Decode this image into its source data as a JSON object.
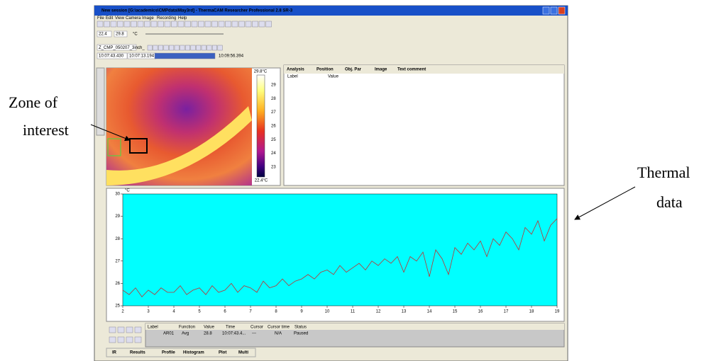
{
  "window": {
    "title": "New session [G:\\academics\\CMPdata\\May3rd] - ThermaCAM Researcher Professional 2.8 SR-3",
    "menu": [
      "File",
      "Edit",
      "View",
      "Camera",
      "Image",
      "Recording",
      "Help"
    ]
  },
  "toolbar": {
    "range_low": "22.4",
    "range_high": "29.8",
    "unit": "°C",
    "file": "Z_CMP_050207_3inch_",
    "time_current": "10:07:43.430",
    "time_start": "10:07:13.194",
    "time_end": "10:09:56.394"
  },
  "ir_image": {
    "scale_max": "29.8°C",
    "scale_min": "22.4°C",
    "scale_ticks": [
      "29",
      "28",
      "27",
      "26",
      "25",
      "24",
      "23"
    ]
  },
  "info_panel": {
    "tabs": [
      "Analysis",
      "Position",
      "Obj. Par",
      "Image",
      "Text comment"
    ],
    "columns": [
      "Label",
      "Value"
    ]
  },
  "plot": {
    "type": "line",
    "y_label": "°C",
    "color": "#c03030",
    "background": "#00ffff",
    "xlim": [
      2,
      19
    ],
    "xticks": [
      2,
      3,
      4,
      5,
      6,
      7,
      8,
      9,
      10,
      11,
      12,
      13,
      14,
      15,
      16,
      17,
      18,
      19
    ],
    "ylim": [
      25,
      30
    ],
    "yticks": [
      25,
      26,
      27,
      28,
      29,
      30
    ],
    "x": [
      2,
      2.25,
      2.5,
      2.75,
      3,
      3.25,
      3.5,
      3.75,
      4,
      4.25,
      4.5,
      4.75,
      5,
      5.25,
      5.5,
      5.75,
      6,
      6.25,
      6.5,
      6.75,
      7,
      7.25,
      7.5,
      7.75,
      8,
      8.25,
      8.5,
      8.75,
      9,
      9.25,
      9.5,
      9.75,
      10,
      10.25,
      10.5,
      10.75,
      11,
      11.25,
      11.5,
      11.75,
      12,
      12.25,
      12.5,
      12.75,
      13,
      13.25,
      13.5,
      13.75,
      14,
      14.25,
      14.5,
      14.75,
      15,
      15.25,
      15.5,
      15.75,
      16,
      16.25,
      16.5,
      16.75,
      17,
      17.25,
      17.5,
      17.75,
      18,
      18.25,
      18.5,
      18.75,
      19
    ],
    "values": [
      25.7,
      25.5,
      25.8,
      25.4,
      25.7,
      25.5,
      25.8,
      25.6,
      25.6,
      25.9,
      25.5,
      25.7,
      25.8,
      25.5,
      25.9,
      25.6,
      25.7,
      26.0,
      25.6,
      25.9,
      25.8,
      25.6,
      26.1,
      25.8,
      25.9,
      26.2,
      25.9,
      26.1,
      26.2,
      26.4,
      26.2,
      26.5,
      26.6,
      26.4,
      26.8,
      26.5,
      26.7,
      26.9,
      26.6,
      27.0,
      26.8,
      27.1,
      26.9,
      27.2,
      26.5,
      27.2,
      27.0,
      27.4,
      26.3,
      27.5,
      27.1,
      26.4,
      27.6,
      27.3,
      27.8,
      27.5,
      27.9,
      27.2,
      28.0,
      27.7,
      28.3,
      28.0,
      27.5,
      28.5,
      28.2,
      28.8,
      27.9,
      28.6,
      28.9
    ]
  },
  "results_table": {
    "columns": [
      "Label",
      "Function",
      "Value",
      "Time",
      "Cursor",
      "Cursor time",
      "Status"
    ],
    "row": [
      "AR01",
      "Avg",
      "28.8",
      "10:07:43.4...",
      "---",
      "N/A",
      "Paused"
    ]
  },
  "bottom_tabs": [
    "IR",
    "Results",
    "Profile",
    "Histogram",
    "Plot",
    "Multi"
  ],
  "annotations": {
    "zone": [
      "Zone of",
      "interest"
    ],
    "thermal": [
      "Thermal",
      "data"
    ]
  }
}
